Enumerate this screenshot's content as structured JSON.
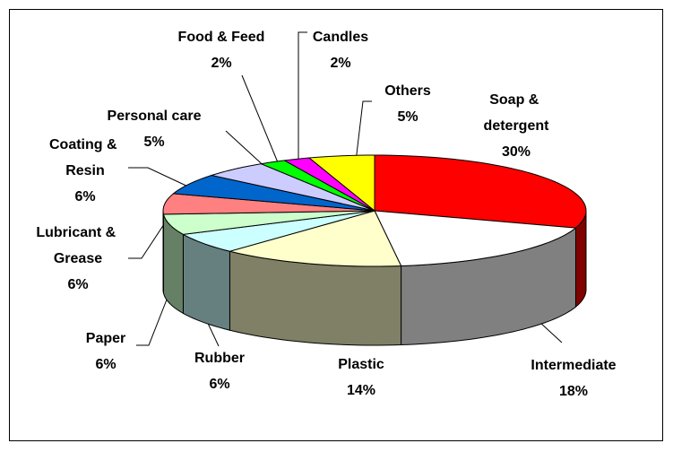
{
  "chart_data": {
    "type": "pie3d",
    "categories": [
      "Soap & detergent",
      "Intermediate",
      "Plastic",
      "Rubber",
      "Paper",
      "Lubricant & Grease",
      "Coating & Resin",
      "Personal care",
      "Food & Feed",
      "Candles",
      "Others"
    ],
    "values": [
      30,
      18,
      14,
      6,
      6,
      6,
      6,
      5,
      2,
      2,
      5
    ],
    "value_labels": [
      "30%",
      "18%",
      "14%",
      "6%",
      "6%",
      "6%",
      "6%",
      "5%",
      "2%",
      "2%",
      "5%"
    ],
    "colors": [
      "#ff0000",
      "#ffffff",
      "#ffffcc",
      "#ccffff",
      "#ccffcc",
      "#ff8080",
      "#0066cc",
      "#ccccff",
      "#00ff00",
      "#ff00ff",
      "#ffff00"
    ]
  }
}
